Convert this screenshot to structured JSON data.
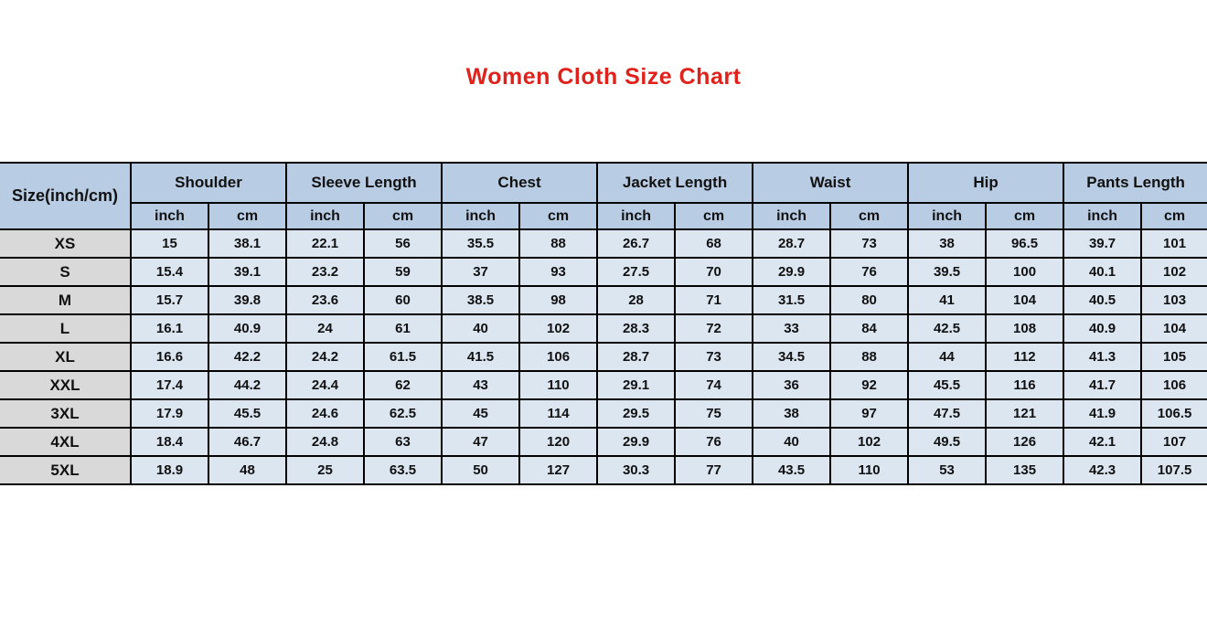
{
  "title": "Women Cloth Size Chart",
  "colors": {
    "title": "#e0221c",
    "header_bg": "#b8cce4",
    "data_bg": "#dce6f1",
    "size_col_bg": "#d9d9d9",
    "border": "#000000"
  },
  "chart_data": {
    "type": "table",
    "title": "Women Cloth Size Chart",
    "corner_header": "Size(inch/cm)",
    "measure_groups": [
      "Shoulder",
      "Sleeve Length",
      "Chest",
      "Jacket Length",
      "Waist",
      "Hip",
      "Pants Length"
    ],
    "unit_subheaders": [
      "inch",
      "cm"
    ],
    "rows": [
      {
        "size": "XS",
        "values": [
          15,
          38.1,
          22.1,
          56,
          35.5,
          88,
          26.7,
          68,
          28.7,
          73,
          38,
          96.5,
          39.7,
          101
        ]
      },
      {
        "size": "S",
        "values": [
          15.4,
          39.1,
          23.2,
          59,
          37,
          93,
          27.5,
          70,
          29.9,
          76,
          39.5,
          100,
          40.1,
          102
        ]
      },
      {
        "size": "M",
        "values": [
          15.7,
          39.8,
          23.6,
          60,
          38.5,
          98,
          28,
          71,
          31.5,
          80,
          41,
          104,
          40.5,
          103
        ]
      },
      {
        "size": "L",
        "values": [
          16.1,
          40.9,
          24,
          61,
          40,
          102,
          28.3,
          72,
          33,
          84,
          42.5,
          108,
          40.9,
          104
        ]
      },
      {
        "size": "XL",
        "values": [
          16.6,
          42.2,
          24.2,
          61.5,
          41.5,
          106,
          28.7,
          73,
          34.5,
          88,
          44,
          112,
          41.3,
          105
        ]
      },
      {
        "size": "XXL",
        "values": [
          17.4,
          44.2,
          24.4,
          62,
          43,
          110,
          29.1,
          74,
          36,
          92,
          45.5,
          116,
          41.7,
          106
        ]
      },
      {
        "size": "3XL",
        "values": [
          17.9,
          45.5,
          24.6,
          62.5,
          45,
          114,
          29.5,
          75,
          38,
          97,
          47.5,
          121,
          41.9,
          106.5
        ]
      },
      {
        "size": "4XL",
        "values": [
          18.4,
          46.7,
          24.8,
          63,
          47,
          120,
          29.9,
          76,
          40,
          102,
          49.5,
          126,
          42.1,
          107
        ]
      },
      {
        "size": "5XL",
        "values": [
          18.9,
          48,
          25,
          63.5,
          50,
          127,
          30.3,
          77,
          43.5,
          110,
          53,
          135,
          42.3,
          107.5
        ]
      }
    ]
  }
}
